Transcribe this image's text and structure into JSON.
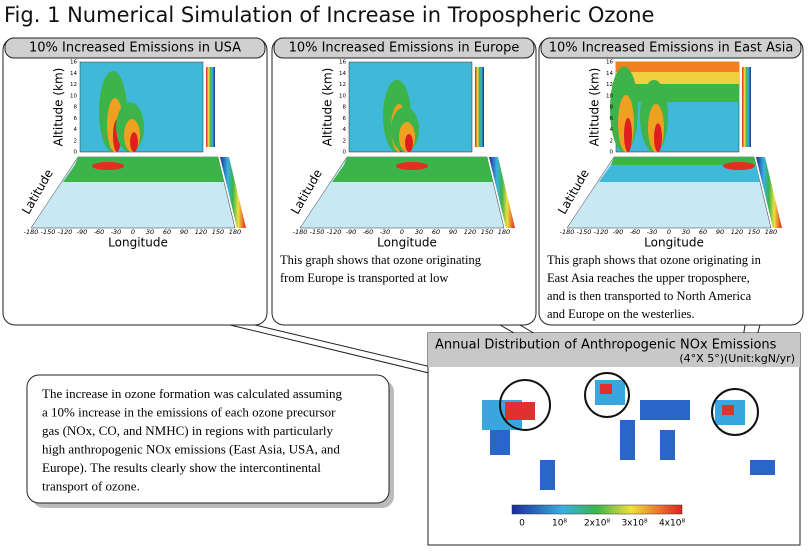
{
  "header": {
    "title": "Fig. 1 Numerical Simulation of Increase in Tropospheric Ozone"
  },
  "panels": [
    {
      "title": "10% Increased Emissions in USA",
      "altitude_label": "Altitude (km)",
      "latitude_label": "Latitude",
      "longitude_label": "Longitude",
      "description": []
    },
    {
      "title": "10% Increased Emissions in Europe",
      "altitude_label": "Altitude (km)",
      "latitude_label": "Latitude",
      "longitude_label": "Longitude",
      "description": [
        "This graph shows that ozone originating",
        "from Europe is transported at low"
      ]
    },
    {
      "title": "10% Increased Emissions in East Asia",
      "altitude_label": "Altitude (km)",
      "latitude_label": "Latitude",
      "longitude_label": "Longitude",
      "description": [
        "This graph shows that ozone originating in",
        "East Asia reaches the upper troposphere,",
        "and is then transported to North America",
        "and Europe on the westerlies."
      ]
    }
  ],
  "altitude_ticks": [
    "0",
    "2",
    "4",
    "6",
    "8",
    "10",
    "12",
    "14",
    "16"
  ],
  "longitude_ticks": [
    "-180",
    "-150",
    "-120",
    "-90",
    "-60",
    "-30",
    "0",
    "30",
    "60",
    "90",
    "120",
    "150",
    "180"
  ],
  "note": [
    "The increase in ozone formation was calculated assuming",
    "a 10% increase in the emissions of each ozone precursor",
    "gas (NOx, CO, and NMHC) in regions with particularly",
    "high anthropogenic NOx emissions (East Asia, USA, and",
    "Europe). The results clearly show the intercontinental",
    "transport of ozone."
  ],
  "emission_map": {
    "title": "Annual Distribution of Anthropogenic NOx Emissions",
    "subtitle": "(4°X 5°)(Unit:kgN/yr)",
    "colorbar_labels": [
      "0",
      "10⁸",
      "2x10⁸",
      "3x10⁸",
      "4x10⁸"
    ]
  }
}
